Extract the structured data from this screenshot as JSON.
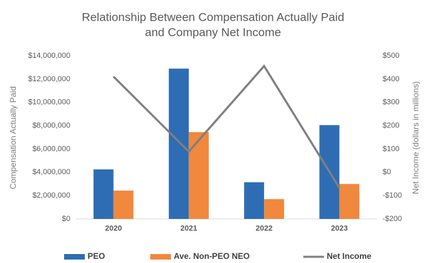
{
  "chart_data": {
    "type": "bar",
    "title": [
      "Relationship Between Compensation Actually Paid",
      "and Company Net Income"
    ],
    "y_label": "Compensation Actually Paid",
    "y2_label": "Net Income (dollars in millions)",
    "categories": [
      "2020",
      "2021",
      "2022",
      "2023"
    ],
    "series": [
      {
        "name": "PEO",
        "color": "#2e6db4",
        "values": [
          4250000,
          12900000,
          3150000,
          8050000
        ]
      },
      {
        "name": "Ave. Non-PEO NEO",
        "color": "#f0883e",
        "values": [
          2430000,
          7450000,
          1700000,
          3000000
        ]
      },
      {
        "name": "Net Income",
        "type": "line",
        "axis": "y2",
        "color": "#7f7f7f",
        "values": [
          411,
          89,
          456,
          -67
        ]
      }
    ],
    "ylim": [
      0,
      14000000
    ],
    "yticks": [
      {
        "value": 0,
        "label": "$0"
      },
      {
        "value": 2000000,
        "label": "$2,000,000"
      },
      {
        "value": 4000000,
        "label": "$4,000,000"
      },
      {
        "value": 6000000,
        "label": "$6,000,000"
      },
      {
        "value": 8000000,
        "label": "$8,000,000"
      },
      {
        "value": 10000000,
        "label": "$10,000,000"
      },
      {
        "value": 12000000,
        "label": "$12,000,000"
      },
      {
        "value": 14000000,
        "label": "$14,000,000"
      }
    ],
    "y2lim": [
      -200,
      500
    ],
    "y2ticks": [
      {
        "value": -200,
        "label": "-$200"
      },
      {
        "value": -100,
        "label": "-$100"
      },
      {
        "value": 0,
        "label": "$0"
      },
      {
        "value": 100,
        "label": "$100"
      },
      {
        "value": 200,
        "label": "$200"
      },
      {
        "value": 300,
        "label": "$300"
      },
      {
        "value": 400,
        "label": "$400"
      },
      {
        "value": 500,
        "label": "$500"
      }
    ],
    "grid": false,
    "legend": "bottom"
  }
}
